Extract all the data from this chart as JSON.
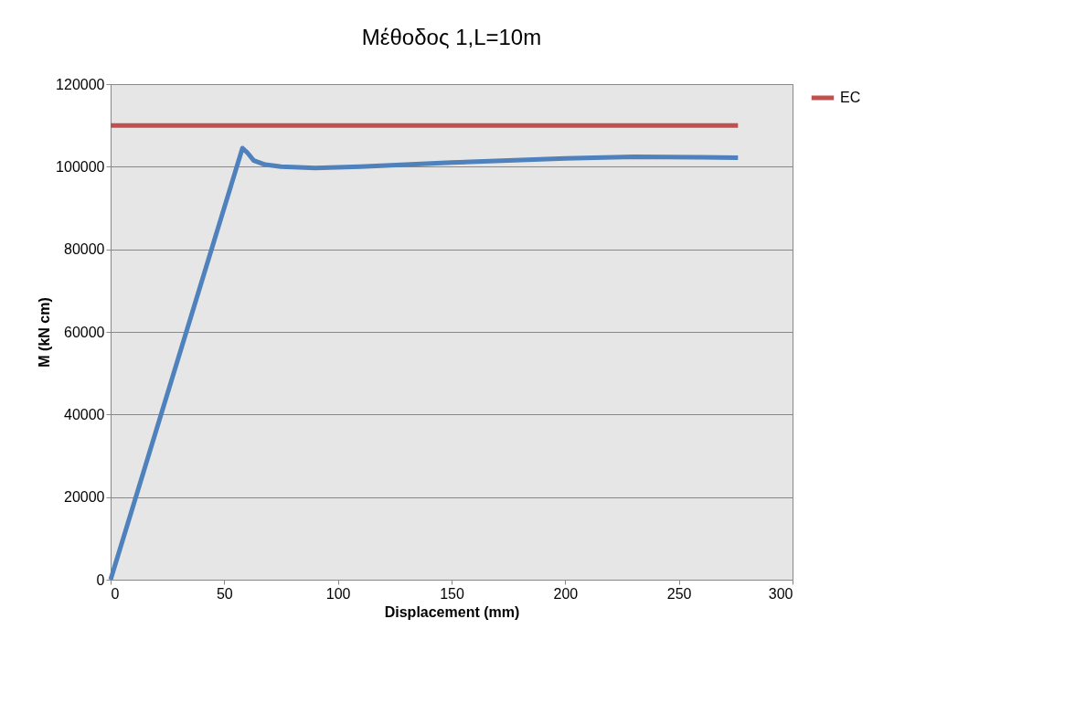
{
  "chart_data": {
    "type": "line",
    "title": "Μέθοδος 1,L=10m",
    "xlabel": "Displacement (mm)",
    "ylabel": "M (kN cm)",
    "xlim": [
      0,
      300
    ],
    "xticks": [
      0,
      50,
      100,
      150,
      200,
      250,
      300
    ],
    "ylim": [
      0,
      120000
    ],
    "yticks": [
      0,
      20000,
      40000,
      60000,
      80000,
      100000,
      120000
    ],
    "grid": "y",
    "legend": "right",
    "marker": "none",
    "line_style": "solid",
    "series": [
      {
        "color": "#4f81bd",
        "x": [
          0,
          58,
          60,
          63,
          68,
          75,
          90,
          110,
          150,
          200,
          230,
          260,
          276
        ],
        "values": [
          0,
          104500,
          103500,
          101500,
          100500,
          100000,
          99700,
          100000,
          101000,
          102000,
          102400,
          102300,
          102200
        ]
      },
      {
        "name": "EC",
        "color": "#c0504d",
        "x": [
          0,
          276
        ],
        "values": [
          110000,
          110000
        ]
      }
    ]
  }
}
